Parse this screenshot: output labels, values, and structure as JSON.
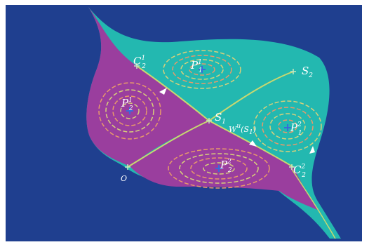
{
  "labels": {
    "C12": {
      "main": "C",
      "sub": "2",
      "sup": "1"
    },
    "P11": {
      "main": "P",
      "sub": "1",
      "sup": "1"
    },
    "S2": {
      "main": "S",
      "sub": "2"
    },
    "P21": {
      "main": "P",
      "sub": "2",
      "sup": "1"
    },
    "S1": {
      "main": "S",
      "sub": "1"
    },
    "Wu": {
      "main": "W",
      "sup": "u",
      "paren_open": "(",
      "inner_main": "S",
      "inner_sub": "1",
      "paren_close": ")"
    },
    "P12": {
      "main": "P",
      "sub": "1",
      "sup": "2"
    },
    "P22": {
      "main": "P",
      "sub": "2",
      "sup": "2"
    },
    "C22": {
      "main": "C",
      "sub": "2",
      "sup": "2"
    },
    "O": {
      "main": "O"
    }
  },
  "colors": {
    "background": "#1f3f8f",
    "cyan_region": "#23b8b0",
    "magenta_region": "#9a3e9e",
    "orbit_yellow": "#d8d07a",
    "orbit_orange": "#e89a6a",
    "boundary": "#c8d870",
    "point_marker": "#3a6ad8",
    "text": "#ffffff"
  }
}
